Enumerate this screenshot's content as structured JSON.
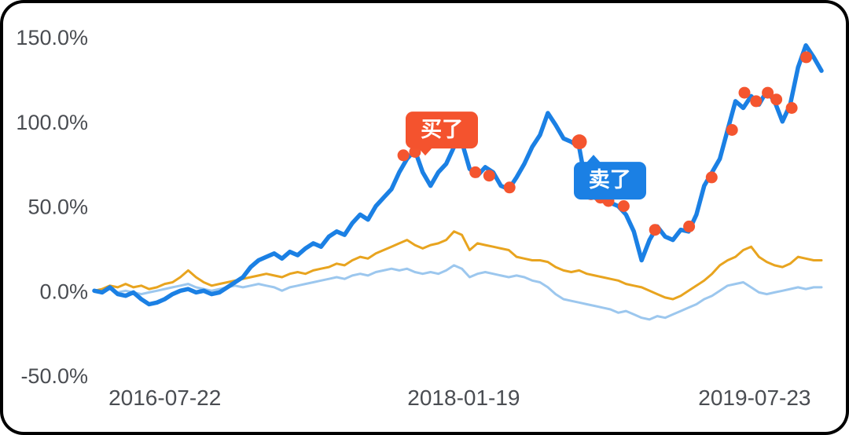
{
  "chart_data": {
    "type": "line",
    "title": "",
    "xlabel": "",
    "ylabel": "",
    "ylim": [
      -50,
      150
    ],
    "grid": false,
    "legend": "none",
    "text_color": "#4a4d52",
    "y_ticks": [
      {
        "label": "150.0%",
        "value": 150
      },
      {
        "label": "100.0%",
        "value": 100
      },
      {
        "label": "50.0%",
        "value": 50
      },
      {
        "label": "0.0%",
        "value": 0
      },
      {
        "label": "-50.0%",
        "value": -50
      }
    ],
    "x_ticks": [
      {
        "label": "2016-07-22",
        "f": 0.097
      },
      {
        "label": "2018-01-19",
        "f": 0.508
      },
      {
        "label": "2019-07-23",
        "f": 0.908
      }
    ],
    "series": [
      {
        "name": "benchmark-light-blue",
        "color": "#9cc7ee",
        "width": 3,
        "values": [
          0,
          0,
          1,
          -1,
          0,
          -1,
          -2,
          -1,
          0,
          1,
          2,
          3,
          4,
          2,
          1,
          0,
          1,
          2,
          3,
          2,
          3,
          4,
          3,
          2,
          0,
          2,
          3,
          4,
          5,
          6,
          7,
          8,
          7,
          9,
          10,
          9,
          11,
          12,
          13,
          12,
          13,
          11,
          10,
          11,
          10,
          12,
          15,
          13,
          8,
          10,
          11,
          10,
          9,
          8,
          9,
          8,
          6,
          5,
          2,
          -2,
          -5,
          -6,
          -7,
          -8,
          -9,
          -10,
          -11,
          -13,
          -12,
          -14,
          -16,
          -17,
          -15,
          -16,
          -14,
          -12,
          -10,
          -8,
          -5,
          -3,
          0,
          3,
          4,
          5,
          2,
          -1,
          -2,
          -1,
          0,
          1,
          2,
          1,
          2,
          2
        ]
      },
      {
        "name": "benchmark-orange",
        "color": "#e8a41f",
        "width": 3,
        "values": [
          0,
          1,
          3,
          2,
          4,
          2,
          3,
          1,
          2,
          4,
          5,
          8,
          12,
          8,
          5,
          3,
          4,
          5,
          6,
          7,
          8,
          9,
          10,
          9,
          8,
          10,
          11,
          10,
          12,
          13,
          14,
          16,
          15,
          18,
          20,
          19,
          22,
          24,
          26,
          28,
          30,
          27,
          25,
          27,
          28,
          30,
          35,
          33,
          24,
          28,
          27,
          26,
          25,
          24,
          20,
          19,
          18,
          18,
          17,
          14,
          12,
          11,
          12,
          10,
          9,
          8,
          7,
          6,
          4,
          3,
          2,
          0,
          -2,
          -4,
          -5,
          -3,
          0,
          3,
          6,
          10,
          15,
          18,
          20,
          24,
          26,
          20,
          17,
          15,
          14,
          16,
          20,
          19,
          18,
          18
        ]
      },
      {
        "name": "portfolio-blue",
        "color": "#1b80e4",
        "width": 5.5,
        "values": [
          0,
          -1,
          2,
          -2,
          -3,
          -1,
          -5,
          -8,
          -7,
          -5,
          -2,
          0,
          1,
          -1,
          0,
          -2,
          -1,
          2,
          5,
          8,
          14,
          18,
          20,
          22,
          19,
          23,
          21,
          25,
          28,
          26,
          32,
          35,
          33,
          40,
          45,
          42,
          50,
          55,
          60,
          70,
          78,
          83,
          70,
          62,
          70,
          75,
          85,
          88,
          72,
          68,
          73,
          70,
          62,
          60,
          67,
          75,
          85,
          92,
          105,
          98,
          90,
          88,
          85,
          60,
          55,
          53,
          52,
          50,
          45,
          35,
          18,
          30,
          38,
          32,
          30,
          36,
          35,
          45,
          62,
          70,
          78,
          95,
          112,
          108,
          115,
          110,
          118,
          112,
          100,
          110,
          132,
          145,
          138,
          130
        ]
      }
    ],
    "markers": {
      "name": "trade-points",
      "color": "#f4552f",
      "radius": 7.5,
      "points": [
        [
          0.425,
          80
        ],
        [
          0.441,
          82
        ],
        [
          0.524,
          70
        ],
        [
          0.543,
          68
        ],
        [
          0.571,
          61
        ],
        [
          0.667,
          88,
          9.5
        ],
        [
          0.683,
          57
        ],
        [
          0.696,
          55
        ],
        [
          0.707,
          53
        ],
        [
          0.728,
          50
        ],
        [
          0.771,
          36
        ],
        [
          0.818,
          38
        ],
        [
          0.849,
          67
        ],
        [
          0.877,
          95
        ],
        [
          0.894,
          117
        ],
        [
          0.91,
          112
        ],
        [
          0.926,
          117
        ],
        [
          0.938,
          113
        ],
        [
          0.959,
          108
        ],
        [
          0.979,
          138
        ]
      ]
    },
    "badges": [
      {
        "label": "买了",
        "bg": "#f4532e",
        "f": 0.478,
        "y": 95,
        "arrow": "bottom"
      },
      {
        "label": "卖了",
        "bg": "#1b80e4",
        "f": 0.709,
        "y": 65,
        "arrow": "top"
      }
    ]
  }
}
